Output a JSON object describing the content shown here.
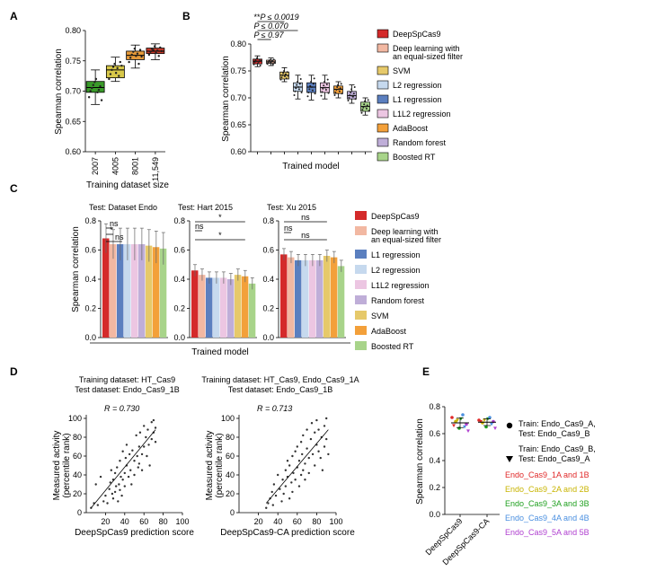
{
  "colors": {
    "deep": "#d42a2a",
    "deepeq": "#f2b8a2",
    "svm": "#e6c96a",
    "l2": "#c6d9ee",
    "l1": "#5b7fbf",
    "l1l2": "#ecc6e2",
    "ada": "#f3a03a",
    "rf": "#bfaed8",
    "brt": "#a8d48a",
    "a_green": "#3a9a2a",
    "a_yellow": "#d8c84a",
    "a_orange": "#e59a3a",
    "a_red": "#c63a2a",
    "e_red": "#e02828",
    "e_yellow": "#c8b400",
    "e_green": "#1fa01f",
    "e_blue": "#4a8fe0",
    "e_purple": "#b040d0"
  },
  "panelA": {
    "letter": "A",
    "ylabel": "Spearman correlation",
    "xlabel": "Training dataset size",
    "yticks": [
      "0.60",
      "0.65",
      "0.70",
      "0.75",
      "0.80"
    ],
    "categories": [
      "2007",
      "4005",
      "8001",
      "11,549"
    ]
  },
  "panelB": {
    "letter": "B",
    "ylabel": "Spearman correlation",
    "xlabel": "Trained model",
    "yticks": [
      "0.60",
      "0.65",
      "0.70",
      "0.75",
      "0.80"
    ],
    "sig": [
      {
        "prefix": "**",
        "label": "P ≤ 0.0019"
      },
      {
        "prefix": "",
        "label": "P ≤ 0.070"
      },
      {
        "prefix": "",
        "label": "P ≤ 0.97"
      }
    ],
    "legend": [
      {
        "label": "DeepSpCas9",
        "color": "deep"
      },
      {
        "label": "Deep learning with",
        "label2": "an equal-sized filter",
        "color": "deepeq"
      },
      {
        "label": "SVM",
        "color": "svm"
      },
      {
        "label": "L2 regression",
        "color": "l2"
      },
      {
        "label": "L1 regression",
        "color": "l1"
      },
      {
        "label": "L1L2 regression",
        "color": "l1l2"
      },
      {
        "label": "AdaBoost",
        "color": "ada"
      },
      {
        "label": "Random forest",
        "color": "rf"
      },
      {
        "label": "Boosted RT",
        "color": "brt"
      }
    ]
  },
  "panelC": {
    "letter": "C",
    "ylabel": "Spearman correlation",
    "xlabel": "Trained model",
    "titles": [
      "Test: Dataset Endo",
      "Test: Hart 2015",
      "Test: Xu 2015"
    ],
    "yticks": [
      "0.0",
      "0.2",
      "0.4",
      "0.6",
      "0.8"
    ],
    "sig": {
      "ns": "ns",
      "star": "*"
    },
    "legend": [
      {
        "label": "DeepSpCas9",
        "color": "deep"
      },
      {
        "label": "Deep learning with",
        "label2": "an equal-sized filter",
        "color": "deepeq"
      },
      {
        "label": "L1 regression",
        "color": "l1"
      },
      {
        "label": "L2 regression",
        "color": "l2"
      },
      {
        "label": "L1L2 regression",
        "color": "l1l2"
      },
      {
        "label": "Random forest",
        "color": "rf"
      },
      {
        "label": "SVM",
        "color": "svm"
      },
      {
        "label": "AdaBoost",
        "color": "ada"
      },
      {
        "label": "Boosted RT",
        "color": "brt"
      }
    ]
  },
  "panelD": {
    "letter": "D",
    "left": {
      "title1": "Training dataset: HT_Cas9",
      "title2": "Test dataset: Endo_Cas9_1B",
      "r": "R = 0.730",
      "xlabel": "DeepSpCas9 prediction score"
    },
    "right": {
      "title1": "Training dataset: HT_Cas9, Endo_Cas9_1A",
      "title2": "Test dataset: Endo_Cas9_1B",
      "r": "R = 0.713",
      "xlabel": "DeepSpCas9-CA prediction score"
    },
    "ylabel1": "Measured activity",
    "ylabel2": "(percentile rank)",
    "yticks": [
      "0",
      "20",
      "40",
      "60",
      "80",
      "100"
    ],
    "xticks": [
      "0",
      "20",
      "40",
      "60",
      "80",
      "100"
    ]
  },
  "panelE": {
    "letter": "E",
    "ylabel": "Spearman correlation",
    "yticks": [
      "0.0",
      "0.2",
      "0.4",
      "0.6",
      "0.8"
    ],
    "categories": [
      "DeepSpCas9",
      "DeepSpCas9-CA"
    ],
    "legend_marker1": [
      "Train: Endo_Cas9_A,",
      "Test: Endo_Cas9_B"
    ],
    "legend_marker2": [
      "Train: Endo_Cas9_B,",
      "Test: Endo_Cas9_A"
    ],
    "pairs": [
      {
        "label": "Endo_Cas9_1A and 1B",
        "color": "e_red"
      },
      {
        "label": "Endo_Cas9_2A and 2B",
        "color": "e_yellow"
      },
      {
        "label": "Endo_Cas9_3A and 3B",
        "color": "e_green"
      },
      {
        "label": "Endo_Cas9_4A and 4B",
        "color": "e_blue"
      },
      {
        "label": "Endo_Cas9_5A and 5B",
        "color": "e_purple"
      }
    ]
  },
  "chart_data": [
    {
      "panel": "A",
      "type": "box",
      "xlabel": "Training dataset size",
      "ylabel": "Spearman correlation",
      "ylim": [
        0.6,
        0.8
      ],
      "categories": [
        "2007",
        "4005",
        "8001",
        "11,549"
      ],
      "box": [
        {
          "min": 0.678,
          "q1": 0.698,
          "median": 0.706,
          "q3": 0.716,
          "max": 0.735,
          "color": "a_green",
          "points": [
            0.69,
            0.7,
            0.705,
            0.71,
            0.715,
            0.72,
            0.698,
            0.702,
            0.708,
            0.685
          ]
        },
        {
          "min": 0.716,
          "q1": 0.722,
          "median": 0.735,
          "q3": 0.742,
          "max": 0.756,
          "color": "a_yellow",
          "points": [
            0.72,
            0.728,
            0.735,
            0.74,
            0.745,
            0.73,
            0.738,
            0.725,
            0.748,
            0.742
          ]
        },
        {
          "min": 0.738,
          "q1": 0.752,
          "median": 0.759,
          "q3": 0.766,
          "max": 0.776,
          "color": "a_orange",
          "points": [
            0.748,
            0.755,
            0.76,
            0.765,
            0.77,
            0.758,
            0.762,
            0.745,
            0.768,
            0.757
          ]
        },
        {
          "min": 0.752,
          "q1": 0.762,
          "median": 0.766,
          "q3": 0.771,
          "max": 0.778,
          "color": "a_red",
          "points": [
            0.76,
            0.765,
            0.77,
            0.768,
            0.774,
            0.763,
            0.767,
            0.758,
            0.772,
            0.766
          ]
        }
      ]
    },
    {
      "panel": "B",
      "type": "box",
      "xlabel": "Trained model",
      "ylabel": "Spearman correlation",
      "ylim": [
        0.6,
        0.8
      ],
      "categories": [
        "DeepSpCas9",
        "Deep learning with an equal-sized filter",
        "SVM",
        "L2 regression",
        "L1 regression",
        "L1L2 regression",
        "AdaBoost",
        "Random forest",
        "Boosted RT"
      ],
      "box": [
        {
          "min": 0.758,
          "q1": 0.763,
          "median": 0.768,
          "q3": 0.772,
          "max": 0.778,
          "color": "deep",
          "points": [
            0.762,
            0.766,
            0.77,
            0.768,
            0.774,
            0.764,
            0.767,
            0.771,
            0.76,
            0.769
          ]
        },
        {
          "min": 0.76,
          "q1": 0.764,
          "median": 0.767,
          "q3": 0.77,
          "max": 0.774,
          "color": "deepeq",
          "points": [
            0.763,
            0.766,
            0.768,
            0.77,
            0.765,
            0.767,
            0.769,
            0.762,
            0.771,
            0.766
          ]
        },
        {
          "min": 0.73,
          "q1": 0.735,
          "median": 0.742,
          "q3": 0.748,
          "max": 0.756,
          "color": "svm",
          "points": [
            0.734,
            0.738,
            0.742,
            0.746,
            0.75,
            0.74,
            0.744,
            0.736,
            0.748,
            0.741
          ]
        },
        {
          "min": 0.698,
          "q1": 0.712,
          "median": 0.72,
          "q3": 0.728,
          "max": 0.742,
          "color": "l2",
          "points": [
            0.705,
            0.712,
            0.718,
            0.724,
            0.73,
            0.72,
            0.716,
            0.726,
            0.735,
            0.71
          ]
        },
        {
          "min": 0.696,
          "q1": 0.71,
          "median": 0.72,
          "q3": 0.728,
          "max": 0.742,
          "color": "l1",
          "points": [
            0.703,
            0.71,
            0.716,
            0.722,
            0.73,
            0.72,
            0.714,
            0.726,
            0.736,
            0.708
          ]
        },
        {
          "min": 0.698,
          "q1": 0.71,
          "median": 0.719,
          "q3": 0.728,
          "max": 0.742,
          "color": "l1l2",
          "points": [
            0.704,
            0.711,
            0.717,
            0.723,
            0.73,
            0.719,
            0.715,
            0.725,
            0.734,
            0.709
          ]
        },
        {
          "min": 0.7,
          "q1": 0.708,
          "median": 0.716,
          "q3": 0.722,
          "max": 0.73,
          "color": "ada",
          "points": [
            0.705,
            0.71,
            0.715,
            0.72,
            0.724,
            0.716,
            0.712,
            0.718,
            0.726,
            0.708
          ]
        },
        {
          "min": 0.69,
          "q1": 0.698,
          "median": 0.704,
          "q3": 0.712,
          "max": 0.724,
          "color": "rf",
          "points": [
            0.695,
            0.7,
            0.705,
            0.71,
            0.716,
            0.704,
            0.702,
            0.708,
            0.72,
            0.698
          ]
        },
        {
          "min": 0.668,
          "q1": 0.675,
          "median": 0.684,
          "q3": 0.692,
          "max": 0.7,
          "color": "brt",
          "points": [
            0.672,
            0.678,
            0.682,
            0.688,
            0.694,
            0.684,
            0.68,
            0.686,
            0.696,
            0.676
          ]
        }
      ]
    },
    {
      "panel": "C",
      "type": "bar",
      "ylabel": "Spearman correlation",
      "xlabel": "Trained model",
      "ylim": [
        0,
        0.8
      ],
      "categories": [
        "DeepSpCas9",
        "Deep learning with an equal-sized filter",
        "L1 regression",
        "L2 regression",
        "L1L2 regression",
        "Random forest",
        "SVM",
        "AdaBoost",
        "Boosted RT"
      ],
      "series": [
        {
          "name": "Test: Dataset Endo",
          "values": [
            0.68,
            0.64,
            0.64,
            0.64,
            0.64,
            0.64,
            0.63,
            0.62,
            0.61
          ],
          "errors": [
            0.1,
            0.1,
            0.11,
            0.11,
            0.11,
            0.11,
            0.11,
            0.11,
            0.11
          ]
        },
        {
          "name": "Test: Hart 2015",
          "values": [
            0.46,
            0.43,
            0.41,
            0.41,
            0.41,
            0.4,
            0.43,
            0.42,
            0.37
          ],
          "errors": [
            0.04,
            0.04,
            0.04,
            0.04,
            0.04,
            0.04,
            0.04,
            0.04,
            0.04
          ]
        },
        {
          "name": "Test: Xu 2015",
          "values": [
            0.57,
            0.55,
            0.53,
            0.53,
            0.53,
            0.53,
            0.56,
            0.55,
            0.49
          ],
          "errors": [
            0.04,
            0.04,
            0.04,
            0.04,
            0.04,
            0.04,
            0.04,
            0.04,
            0.04
          ]
        }
      ]
    },
    {
      "panel": "D-left",
      "type": "scatter",
      "xlabel": "DeepSpCas9 prediction score",
      "ylabel": "Measured activity (percentile rank)",
      "xlim": [
        0,
        100
      ],
      "ylim": [
        0,
        100
      ],
      "x": [
        5,
        8,
        10,
        12,
        15,
        18,
        20,
        22,
        24,
        25,
        26,
        27,
        28,
        28,
        30,
        30,
        31,
        32,
        33,
        34,
        35,
        35,
        36,
        37,
        38,
        38,
        40,
        40,
        41,
        42,
        42,
        44,
        45,
        46,
        47,
        48,
        50,
        50,
        52,
        53,
        54,
        55,
        55,
        56,
        58,
        58,
        60,
        60,
        62,
        63,
        64,
        65,
        66,
        68,
        68,
        70,
        70,
        72,
        72
      ],
      "y": [
        5,
        10,
        30,
        8,
        38,
        12,
        18,
        10,
        25,
        32,
        45,
        20,
        15,
        35,
        42,
        22,
        28,
        48,
        12,
        30,
        55,
        24,
        38,
        18,
        65,
        35,
        42,
        28,
        58,
        50,
        72,
        38,
        62,
        45,
        30,
        66,
        55,
        40,
        82,
        60,
        48,
        70,
        52,
        85,
        62,
        45,
        92,
        70,
        80,
        60,
        88,
        72,
        50,
        96,
        78,
        85,
        98,
        90,
        75
      ]
    },
    {
      "panel": "D-right",
      "type": "scatter",
      "xlabel": "DeepSpCas9-CA prediction score",
      "ylabel": "Measured activity (percentile rank)",
      "xlim": [
        0,
        100
      ],
      "ylim": [
        0,
        100
      ],
      "x": [
        28,
        30,
        32,
        34,
        35,
        36,
        38,
        40,
        42,
        44,
        45,
        46,
        48,
        48,
        50,
        50,
        52,
        52,
        54,
        55,
        55,
        56,
        58,
        58,
        60,
        60,
        62,
        62,
        64,
        64,
        65,
        66,
        66,
        68,
        68,
        70,
        70,
        72,
        72,
        74,
        75,
        76,
        78,
        78,
        80,
        80,
        82,
        82,
        84,
        85,
        86,
        88,
        88,
        90,
        90,
        92
      ],
      "y": [
        5,
        10,
        15,
        22,
        8,
        30,
        18,
        40,
        25,
        12,
        35,
        20,
        45,
        28,
        38,
        55,
        15,
        50,
        32,
        60,
        22,
        42,
        65,
        35,
        48,
        70,
        28,
        55,
        40,
        75,
        62,
        45,
        82,
        52,
        35,
        68,
        88,
        58,
        42,
        78,
        95,
        62,
        85,
        50,
        72,
        98,
        65,
        88,
        58,
        80,
        45,
        92,
        70,
        100,
        78,
        62
      ]
    },
    {
      "panel": "E",
      "type": "scatter",
      "ylabel": "Spearman correlation",
      "ylim": [
        0,
        0.8
      ],
      "categories": [
        "DeepSpCas9",
        "DeepSpCas9-CA"
      ],
      "series": [
        {
          "name": "Endo_Cas9_1A and 1B",
          "color": "e_red",
          "circle": [
            0.72,
            0.7
          ],
          "triangle": [
            0.66,
            0.69
          ]
        },
        {
          "name": "Endo_Cas9_2A and 2B",
          "color": "e_yellow",
          "circle": [
            0.69,
            0.68
          ],
          "triangle": [
            0.7,
            0.7
          ]
        },
        {
          "name": "Endo_Cas9_3A and 3B",
          "color": "e_green",
          "circle": [
            0.64,
            0.65
          ],
          "triangle": [
            0.71,
            0.71
          ]
        },
        {
          "name": "Endo_Cas9_4A and 4B",
          "color": "e_blue",
          "circle": [
            0.74,
            0.72
          ],
          "triangle": [
            0.65,
            0.67
          ]
        },
        {
          "name": "Endo_Cas9_5A and 5B",
          "color": "e_purple",
          "circle": [
            0.67,
            0.69
          ],
          "triangle": [
            0.62,
            0.64
          ]
        }
      ],
      "mean": [
        0.68,
        0.685
      ],
      "sd": [
        0.035,
        0.025
      ]
    }
  ]
}
